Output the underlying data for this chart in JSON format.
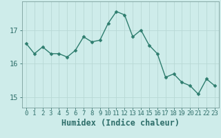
{
  "x": [
    0,
    1,
    2,
    3,
    4,
    5,
    6,
    7,
    8,
    9,
    10,
    11,
    12,
    13,
    14,
    15,
    16,
    17,
    18,
    19,
    20,
    21,
    22,
    23
  ],
  "y": [
    16.6,
    16.3,
    16.5,
    16.3,
    16.3,
    16.2,
    16.4,
    16.8,
    16.65,
    16.7,
    17.2,
    17.55,
    17.45,
    16.8,
    17.0,
    16.55,
    16.3,
    15.6,
    15.7,
    15.45,
    15.35,
    15.1,
    15.55,
    15.35
  ],
  "line_color": "#2e7d6e",
  "marker": "D",
  "marker_size": 2.5,
  "bg_color": "#ceecea",
  "grid_color": "#b8d8d5",
  "xlabel": "Humidex (Indice chaleur)",
  "ylim": [
    14.7,
    17.85
  ],
  "xlim": [
    -0.5,
    23.5
  ],
  "yticks": [
    15,
    16,
    17
  ],
  "xtick_labels": [
    "0",
    "1",
    "2",
    "3",
    "4",
    "5",
    "6",
    "7",
    "8",
    "9",
    "10",
    "11",
    "12",
    "13",
    "14",
    "15",
    "16",
    "17",
    "18",
    "19",
    "20",
    "21",
    "22",
    "23"
  ],
  "tick_color": "#2e6e6a",
  "axis_color": "#7a9e9b",
  "xlabel_fontsize": 8.5,
  "ytick_fontsize": 7.5,
  "xtick_fontsize": 6.5,
  "line_width": 1.0
}
